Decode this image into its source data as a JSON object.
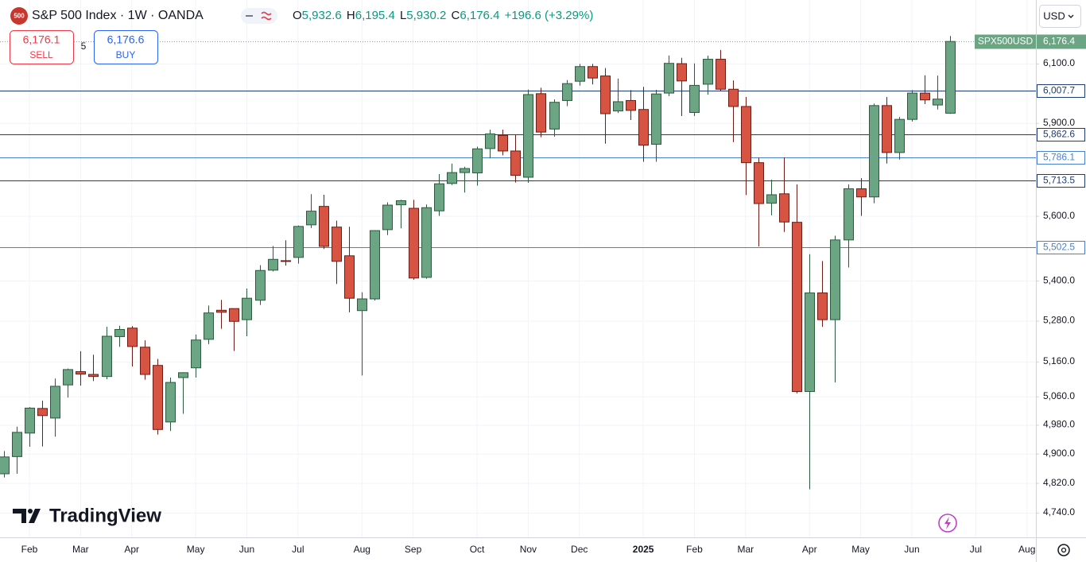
{
  "chart_data": {
    "type": "candlestick",
    "title": "S&P 500 Index · 1W · OANDA",
    "symbol_badge": "500",
    "legend_ohlc": [
      {
        "letter": "O",
        "value": "5,932.6"
      },
      {
        "letter": "H",
        "value": "6,195.4"
      },
      {
        "letter": "L",
        "value": "5,930.2"
      },
      {
        "letter": "C",
        "value": "6,176.4"
      }
    ],
    "change": "+196.6 (+3.29%)",
    "trade": {
      "sell_price": "6,176.1",
      "sell": "SELL",
      "spread": "5",
      "buy_price": "6,176.6",
      "buy": "BUY"
    },
    "currency": "USD",
    "symbol": "SPX500USD",
    "last_price": {
      "value": 6176.4,
      "label": "6,176.4"
    },
    "watermark": "TradingView",
    "open": [
      4845,
      4892,
      4957,
      5026,
      4999,
      5093,
      5131,
      5123,
      5117,
      5233,
      5258,
      5202,
      5149,
      4988,
      5114,
      5142,
      5225,
      5311,
      5316,
      5283,
      5341,
      5432,
      5461,
      5471,
      5572,
      5630,
      5565,
      5476,
      5310,
      5345,
      5557,
      5635,
      5624,
      5410,
      5616,
      5703,
      5738,
      5737,
      5816,
      5859,
      5808,
      5723,
      5998,
      5880,
      5975,
      6040,
      6090,
      6058,
      5940,
      5975,
      5945,
      5830,
      6000,
      6100,
      5935,
      6030,
      6115,
      6013,
      5955,
      5770,
      5640,
      5670,
      5580,
      5074,
      5363,
      5283,
      5525,
      5686,
      5660,
      5958,
      5803,
      5912,
      6000,
      5960,
      5932.6
    ],
    "high": [
      4907,
      4975,
      5030,
      5048,
      5111,
      5140,
      5190,
      5180,
      5262,
      5265,
      5264,
      5222,
      5168,
      5114,
      5129,
      5239,
      5325,
      5342,
      5315,
      5376,
      5447,
      5506,
      5524,
      5570,
      5669,
      5667,
      5585,
      5566,
      5365,
      5555,
      5643,
      5651,
      5651,
      5636,
      5733,
      5767,
      5757,
      5822,
      5878,
      5878,
      5862,
      6012,
      6018,
      5979,
      6044,
      6099,
      6099,
      6085,
      6049,
      6010,
      6021,
      6011,
      6128,
      6120,
      6101,
      6127,
      6147,
      6043,
      5987,
      5786,
      5715,
      5787,
      5700,
      5481,
      5460,
      5538,
      5700,
      5720,
      5965,
      5987,
      5920,
      6010,
      6060,
      6059,
      6195.4
    ],
    "low": [
      4835,
      4845,
      4919,
      4920,
      4947,
      5057,
      5091,
      5104,
      5109,
      5203,
      5146,
      5108,
      4953,
      4963,
      5011,
      5114,
      5211,
      5256,
      5191,
      5234,
      5327,
      5428,
      5446,
      5452,
      5562,
      5497,
      5390,
      5305,
      5120,
      5340,
      5540,
      5561,
      5403,
      5406,
      5600,
      5698,
      5674,
      5696,
      5784,
      5794,
      5706,
      5705,
      5853,
      5855,
      5956,
      6025,
      6029,
      5832,
      5933,
      5910,
      5773,
      5773,
      5990,
      5923,
      5923,
      5995,
      6008,
      5837,
      5666,
      5505,
      5602,
      5550,
      5069,
      4803,
      5262,
      5100,
      5440,
      5600,
      5640,
      5767,
      5780,
      5905,
      5963,
      5945,
      5930.2
    ],
    "close": [
      4891,
      4959,
      5027,
      5006,
      5089,
      5137,
      5124,
      5117,
      5234,
      5254,
      5204,
      5123,
      4967,
      5100,
      5128,
      5223,
      5303,
      5305,
      5278,
      5347,
      5431,
      5465,
      5460,
      5567,
      5615,
      5505,
      5459,
      5347,
      5345,
      5554,
      5634,
      5648,
      5408,
      5626,
      5702,
      5738,
      5751,
      5815,
      5864,
      5808,
      5729,
      5995,
      5870,
      5969,
      6032,
      6090,
      6051,
      5931,
      5971,
      5942,
      5827,
      5997,
      6101,
      6041,
      6026,
      6115,
      6013,
      5955,
      5770,
      5639,
      5667,
      5581,
      5074,
      5363,
      5283,
      5525,
      5686,
      5660,
      5958,
      5803,
      5912,
      6000,
      5977,
      5979.8,
      6176.4
    ],
    "up_color": "#6ba583",
    "up_border": "#2b5a3e",
    "down_color": "#d75442",
    "down_border": "#6e1d16",
    "xlim": [
      -0.3,
      80.7
    ],
    "xticks": [
      {
        "value": 2,
        "label": "Feb"
      },
      {
        "value": 6,
        "label": "Mar"
      },
      {
        "value": 10,
        "label": "Apr"
      },
      {
        "value": 15,
        "label": "May"
      },
      {
        "value": 19,
        "label": "Jun"
      },
      {
        "value": 23,
        "label": "Jul"
      },
      {
        "value": 28,
        "label": "Aug"
      },
      {
        "value": 32,
        "label": "Sep"
      },
      {
        "value": 37,
        "label": "Oct"
      },
      {
        "value": 41,
        "label": "Nov"
      },
      {
        "value": 45,
        "label": "Dec"
      },
      {
        "value": 50,
        "label": "2025",
        "bold": true
      },
      {
        "value": 54,
        "label": "Feb"
      },
      {
        "value": 58,
        "label": "Mar"
      },
      {
        "value": 63,
        "label": "Apr"
      },
      {
        "value": 67,
        "label": "May"
      },
      {
        "value": 71,
        "label": "Jun"
      },
      {
        "value": 76,
        "label": "Jul"
      },
      {
        "value": 80,
        "label": "Aug"
      }
    ],
    "ylim": [
      4675,
      6322
    ],
    "log_scale": true,
    "grid": true,
    "yticks": [
      {
        "value": 6100,
        "label": "6,100.0"
      },
      {
        "value": 5900,
        "label": "5,900.0"
      },
      {
        "value": 5600,
        "label": "5,600.0"
      },
      {
        "value": 5400,
        "label": "5,400.0"
      },
      {
        "value": 5280,
        "label": "5,280.0"
      },
      {
        "value": 5160,
        "label": "5,160.0"
      },
      {
        "value": 5060,
        "label": "5,060.0"
      },
      {
        "value": 4980,
        "label": "4,980.0"
      },
      {
        "value": 4900,
        "label": "4,900.0"
      },
      {
        "value": 4820,
        "label": "4,820.0"
      },
      {
        "value": 4740,
        "label": "4,740.0"
      }
    ],
    "levels": [
      {
        "value": 6007.7,
        "label": "6,007.7",
        "color": "#1c3d78"
      },
      {
        "value": 5862.6,
        "label": "5,862.6",
        "color": "#1c3d78"
      },
      {
        "value": 5786.1,
        "label": "5,786.1",
        "color": "#4a7fd0"
      },
      {
        "value": 5713.5,
        "label": "5,713.5",
        "color": "#1c3d78"
      },
      {
        "value": 5502.5,
        "label": "5,502.5",
        "color": "#4a7fd0"
      }
    ]
  }
}
